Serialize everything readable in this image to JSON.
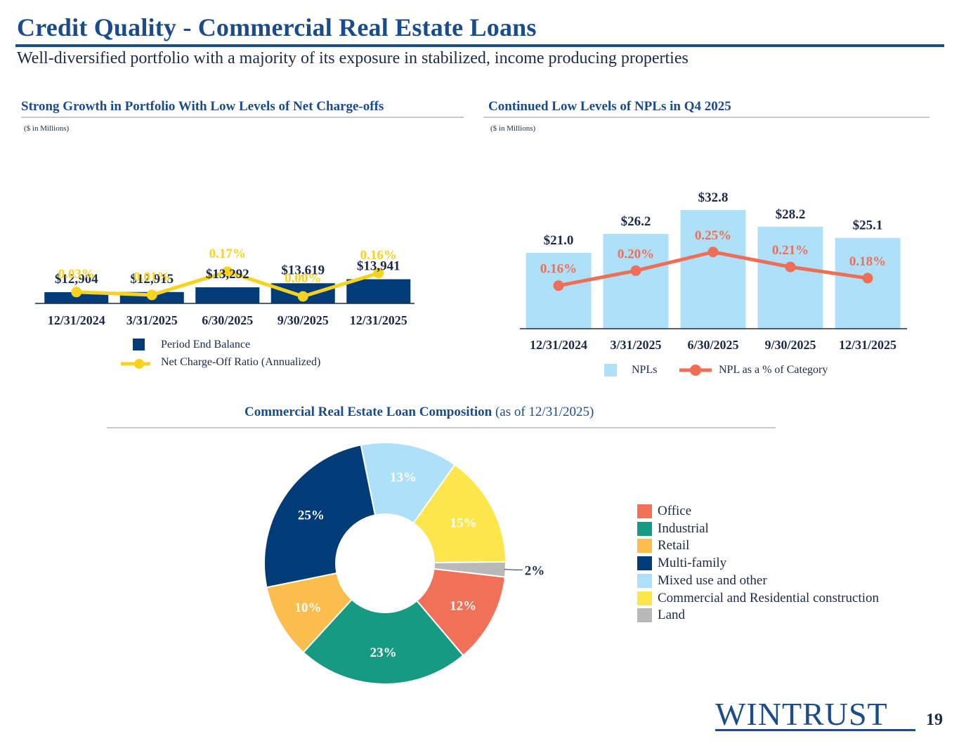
{
  "header": {
    "title": "Credit Quality - Commercial Real Estate Loans",
    "subtitle": "Well-diversified portfolio with a majority of its exposure in stabilized, income producing properties"
  },
  "left_panel": {
    "title": "Strong Growth in Portfolio With Low Levels of Net Charge-offs",
    "units": "($ in Millions)",
    "legend_bar": "Period End Balance",
    "legend_line": "Net Charge-Off Ratio (Annualized)"
  },
  "right_panel": {
    "title": "Continued Low Levels of NPLs in Q4 2025",
    "units": "($ in Millions)",
    "legend_bar": "NPLs",
    "legend_line": "NPL as a % of Category"
  },
  "composition": {
    "title_bold": "Commercial Real Estate Loan Composition",
    "title_suffix": " (as of 12/31/2025)"
  },
  "footer": {
    "logo": "WINTRUST",
    "page_number": "19"
  },
  "colors": {
    "navy": "#013b78",
    "light_blue": "#aee0f9",
    "yellow_line": "#f6d31c",
    "salmon_line": "#ee6f56",
    "title_blue": "#1a4c8b"
  },
  "chart_data": [
    {
      "type": "bar",
      "categories": [
        "12/31/2024",
        "3/31/2025",
        "6/30/2025",
        "9/30/2025",
        "12/31/2025"
      ],
      "series": [
        {
          "name": "Period End Balance",
          "values": [
            12904,
            12915,
            13292,
            13619,
            13941
          ],
          "labels": [
            "$12,904",
            "$12,915",
            "$13,292",
            "$13,619",
            "$13,941"
          ],
          "kind": "bar"
        },
        {
          "name": "Net Charge-Off Ratio (Annualized)",
          "values": [
            0.03,
            0.01,
            0.17,
            0.0,
            0.16
          ],
          "labels": [
            "0.03%",
            "0.01%",
            "0.17%",
            "0.00%",
            "0.16%"
          ],
          "kind": "line"
        }
      ],
      "bar_color": "#013b78",
      "line_color": "#f6d31c"
    },
    {
      "type": "bar",
      "categories": [
        "12/31/2024",
        "3/31/2025",
        "6/30/2025",
        "9/30/2025",
        "12/31/2025"
      ],
      "series": [
        {
          "name": "NPLs",
          "values": [
            21.0,
            26.2,
            32.8,
            28.2,
            25.1
          ],
          "labels": [
            "$21.0",
            "$26.2",
            "$32.8",
            "$28.2",
            "$25.1"
          ],
          "kind": "bar"
        },
        {
          "name": "NPL as a % of Category",
          "values": [
            0.16,
            0.2,
            0.25,
            0.21,
            0.18
          ],
          "labels": [
            "0.16%",
            "0.20%",
            "0.25%",
            "0.21%",
            "0.18%"
          ],
          "kind": "line"
        }
      ],
      "bar_color": "#aee0f9",
      "line_color": "#ee6f56"
    },
    {
      "type": "pie",
      "variant": "donut",
      "slices": [
        {
          "name": "Office",
          "value": 12,
          "label": "12%",
          "color": "#f07157"
        },
        {
          "name": "Industrial",
          "value": 23,
          "label": "23%",
          "color": "#169a82"
        },
        {
          "name": "Retail",
          "value": 10,
          "label": "10%",
          "color": "#fbbd4d"
        },
        {
          "name": "Multi-family",
          "value": 25,
          "label": "25%",
          "color": "#013b78"
        },
        {
          "name": "Mixed use and other",
          "value": 13,
          "label": "13%",
          "color": "#aee0f9"
        },
        {
          "name": "Commercial and Residential construction",
          "value": 15,
          "label": "15%",
          "color": "#fde64c"
        },
        {
          "name": "Land",
          "value": 2,
          "label": "2%",
          "color": "#b9b9b9"
        }
      ],
      "legend_placement": "right"
    }
  ]
}
